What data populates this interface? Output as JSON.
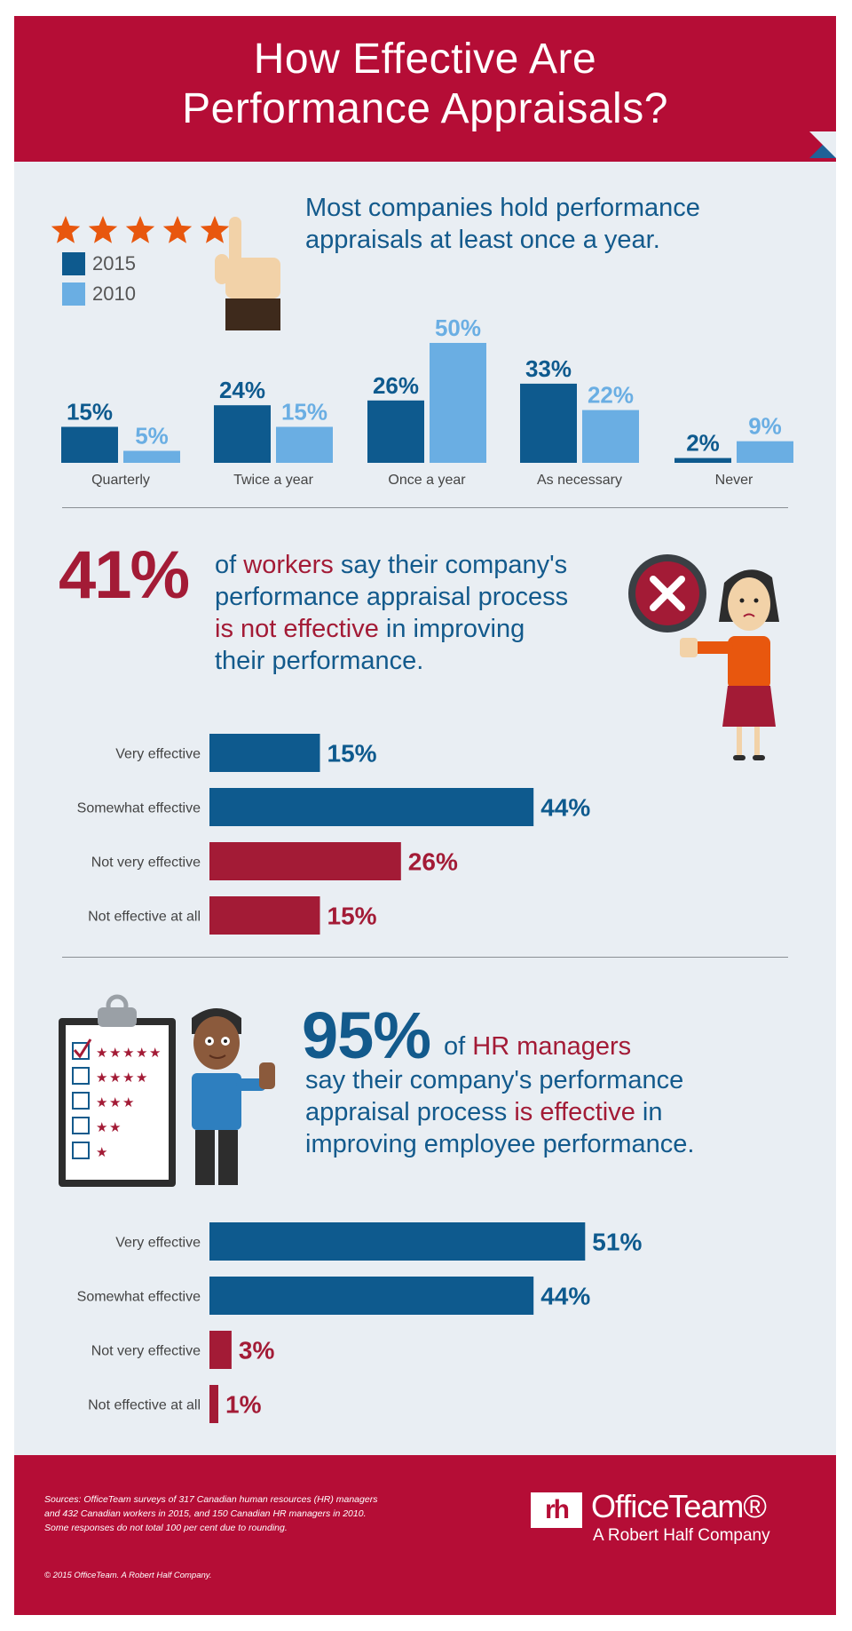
{
  "header": {
    "title_line1": "How Effective Are",
    "title_line2": "Performance Appraisals?"
  },
  "section1": {
    "headline_line1": "Most companies hold performance",
    "headline_line2": "appraisals at least once a year."
  },
  "section2": {
    "big": "41%",
    "line1_a": "of ",
    "line1_b": "workers",
    "line1_c": " say their company's",
    "line2": "performance appraisal process",
    "line3_a": "is not effective",
    "line3_b": " in improving",
    "line4": "their performance."
  },
  "section3": {
    "big": "95%",
    "line1_a": " of ",
    "line1_b": "HR managers",
    "line2": "say their company's performance",
    "line3_a": "appraisal process ",
    "line3_b": "is effective",
    "line3_c": " in",
    "line4": "improving employee performance."
  },
  "footer": {
    "sources_line1": "Sources: OfficeTeam surveys of 317 Canadian human resources (HR) managers",
    "sources_line2": "and 432 Canadian workers in 2015, and 150 Canadian HR managers in 2010.",
    "sources_line3": "Some responses do not total 100 per cent due to rounding.",
    "copyright": "© 2015 OfficeTeam. A Robert Half Company.",
    "logo_mark": "rh",
    "logo_name": "OfficeTeam®",
    "logo_sub": "A Robert Half Company"
  },
  "colors": {
    "brand_red": "#b50d36",
    "dark_blue": "#0e5a8e",
    "light_blue": "#6aaee3",
    "bar_red": "#a31b36",
    "star_orange": "#e8570e"
  },
  "chart_data": [
    {
      "type": "bar",
      "categories": [
        "Quarterly",
        "Twice a year",
        "Once a year",
        "As necessary",
        "Never"
      ],
      "series": [
        {
          "name": "2015",
          "values": [
            15,
            24,
            26,
            33,
            2
          ]
        },
        {
          "name": "2010",
          "values": [
            5,
            15,
            50,
            22,
            9
          ]
        }
      ],
      "value_labels": {
        "2015": [
          "15%",
          "24%",
          "26%",
          "33%",
          "2%"
        ],
        "2010": [
          "5%",
          "15%",
          "50%",
          "22%",
          "9%"
        ]
      },
      "ylim": [
        0,
        50
      ],
      "legend": "top-left"
    },
    {
      "type": "bar",
      "orientation": "horizontal",
      "categories": [
        "Very effective",
        "Somewhat effective",
        "Not very effective",
        "Not effective at all"
      ],
      "values": [
        15,
        44,
        26,
        15
      ],
      "value_labels": [
        "15%",
        "44%",
        "26%",
        "15%"
      ],
      "bar_colors": [
        "#0e5a8e",
        "#0e5a8e",
        "#a31b36",
        "#a31b36"
      ]
    },
    {
      "type": "bar",
      "orientation": "horizontal",
      "categories": [
        "Very effective",
        "Somewhat effective",
        "Not very effective",
        "Not effective at all"
      ],
      "values": [
        51,
        44,
        3,
        1
      ],
      "value_labels": [
        "51%",
        "44%",
        "3%",
        "1%"
      ],
      "bar_colors": [
        "#0e5a8e",
        "#0e5a8e",
        "#a31b36",
        "#a31b36"
      ]
    }
  ]
}
